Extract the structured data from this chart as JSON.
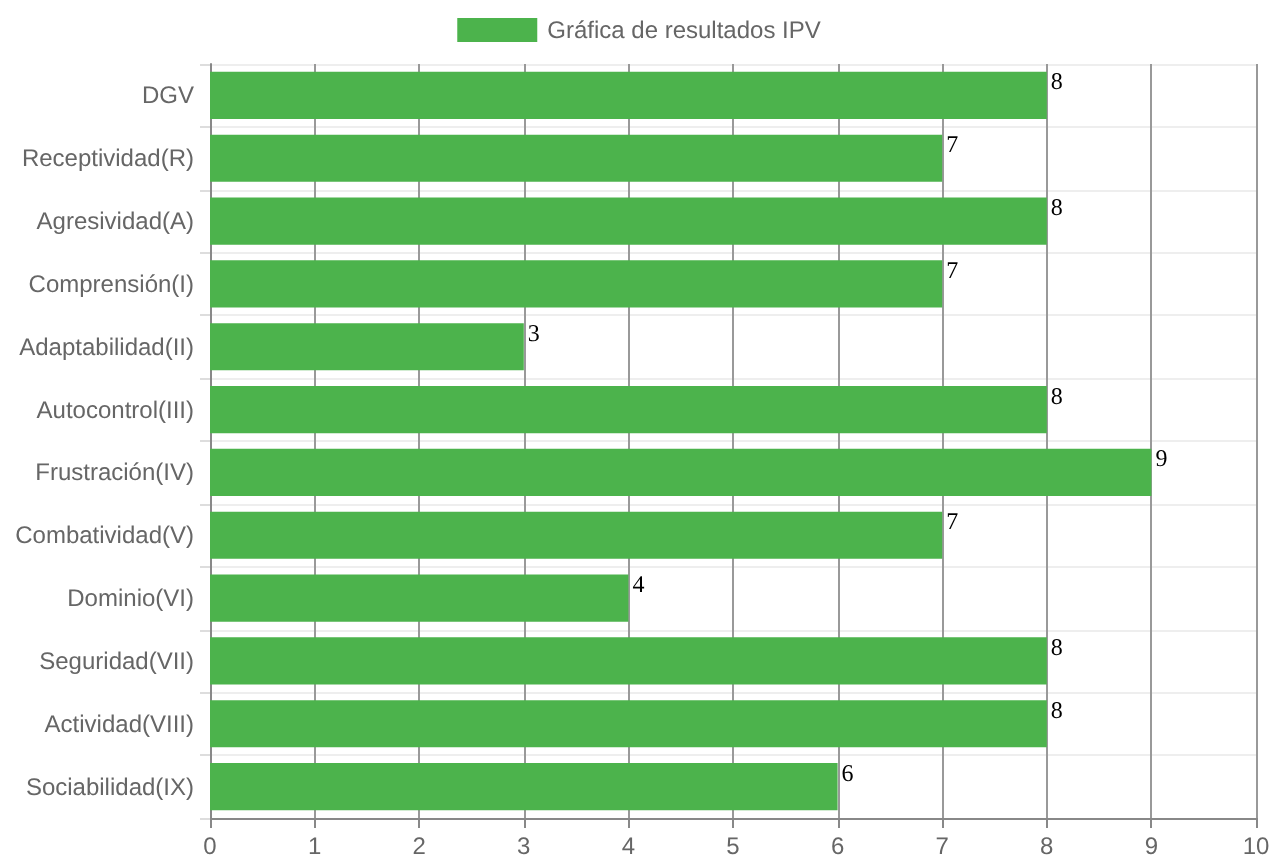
{
  "chart_data": {
    "type": "bar",
    "orientation": "horizontal",
    "categories": [
      "DGV",
      "Receptividad(R)",
      "Agresividad(A)",
      "Comprensión(I)",
      "Adaptabilidad(II)",
      "Autocontrol(III)",
      "Frustración(IV)",
      "Combatividad(V)",
      "Dominio(VI)",
      "Seguridad(VII)",
      "Actividad(VIII)",
      "Sociabilidad(IX)"
    ],
    "series": [
      {
        "name": "Gráfica de resultados IPV",
        "color": "#4cb34c",
        "values": [
          8,
          7,
          8,
          7,
          3,
          8,
          9,
          7,
          4,
          8,
          8,
          6
        ]
      }
    ],
    "xlim": [
      0,
      10
    ],
    "xticks": [
      0,
      1,
      2,
      3,
      4,
      5,
      6,
      7,
      8,
      9,
      10
    ],
    "grid": true,
    "legend": "top",
    "data_labels": true
  }
}
